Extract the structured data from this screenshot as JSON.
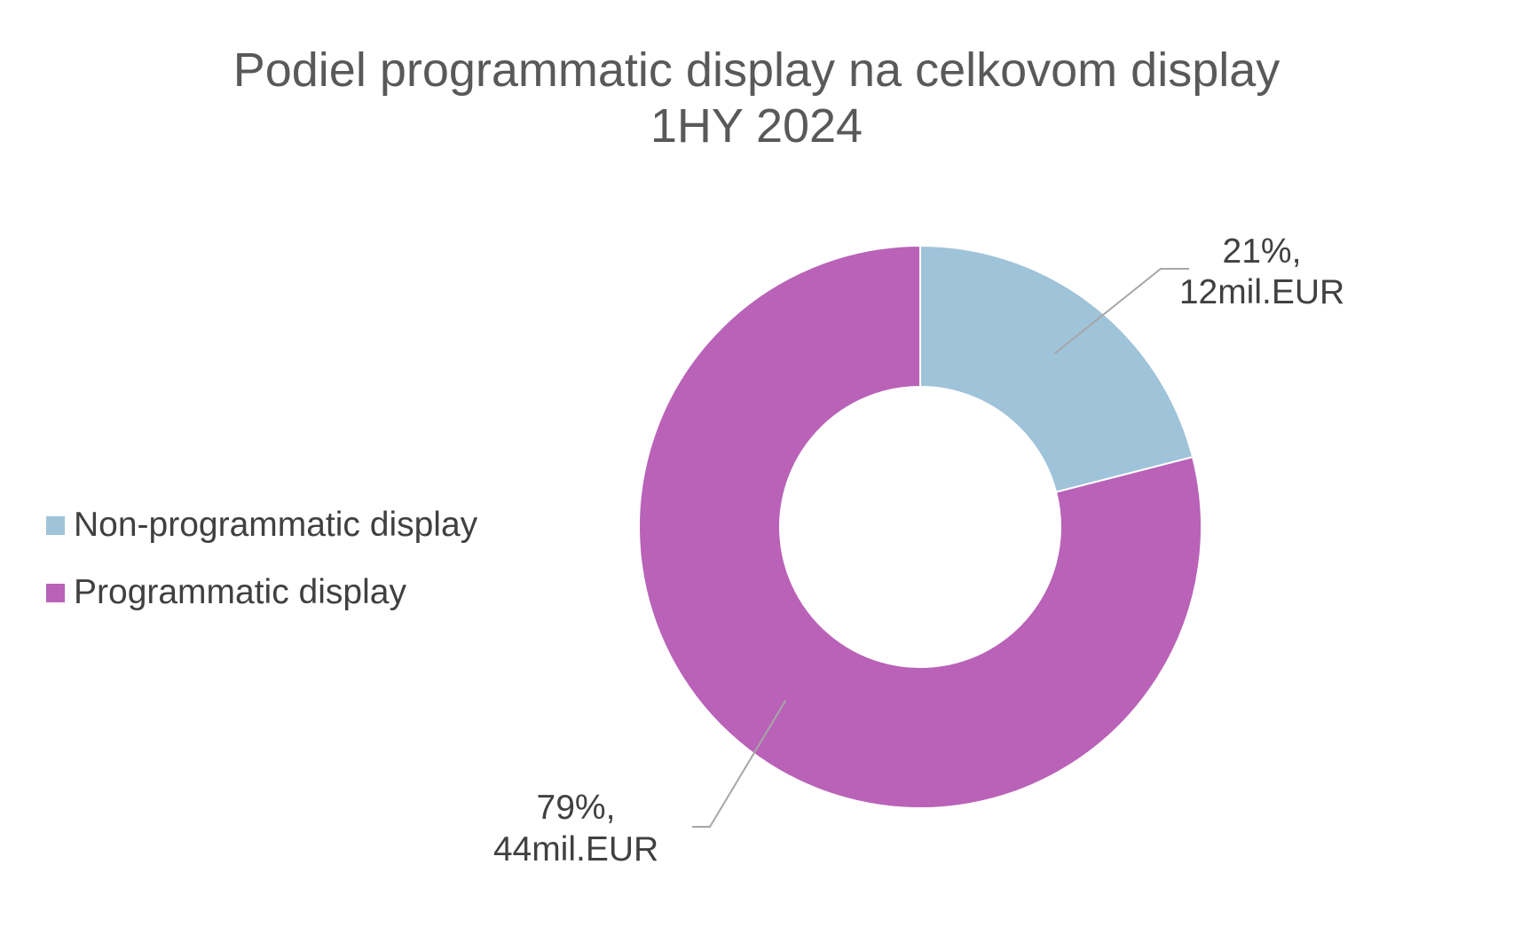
{
  "chart_data": {
    "type": "pie",
    "title": "Podiel programmatic display na celkovom display",
    "subtitle": "1HY 2024",
    "categories": [
      "Non-programmatic display",
      "Programmatic display"
    ],
    "values": [
      21,
      79
    ],
    "data_labels": [
      {
        "percent": "21%,",
        "amount": "12mil.EUR"
      },
      {
        "percent": "79%,",
        "amount": "44mil.EUR"
      }
    ],
    "colors": [
      "#9fc3d9",
      "#b962b8"
    ],
    "legend": {
      "position": "left",
      "entries": [
        "Non-programmatic display",
        "Programmatic display"
      ]
    },
    "donut": true
  }
}
